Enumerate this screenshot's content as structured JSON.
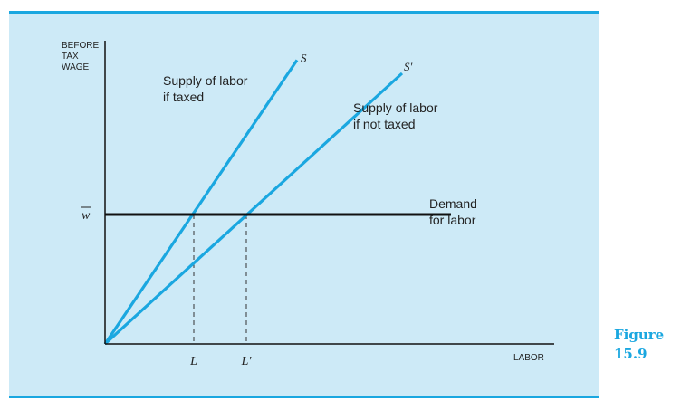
{
  "caption": {
    "word": "Figure",
    "number": "15.9"
  },
  "chart_data": {
    "type": "line",
    "title": "",
    "xlabel": "LABOR",
    "ylabel": [
      "BEFORE",
      "TAX",
      "WAGE"
    ],
    "xlim": [
      0,
      10
    ],
    "ylim": [
      0,
      10
    ],
    "grid": false,
    "series": [
      {
        "name": "S",
        "label_lines": [
          "Supply of labor",
          "if taxed"
        ],
        "color": "#1aa7e0",
        "x": [
          0,
          5.3
        ],
        "y": [
          0,
          9.65
        ]
      },
      {
        "name": "S'",
        "label_lines": [
          "Supply of labor",
          "if not taxed"
        ],
        "color": "#1aa7e0",
        "x": [
          0,
          8.2
        ],
        "y": [
          0,
          9.2
        ]
      },
      {
        "name": "",
        "label_lines": [
          "Demand",
          "for labor"
        ],
        "color": "#111111",
        "x": [
          0,
          9.55
        ],
        "y": [
          4.4,
          4.4
        ]
      }
    ],
    "y_ticks": [
      {
        "value": 4.4,
        "label": "w",
        "overline": true
      }
    ],
    "x_ticks": [
      {
        "value": 2.45,
        "label": "L"
      },
      {
        "value": 3.9,
        "label": "L'"
      }
    ],
    "guides": [
      {
        "x": 2.45,
        "y": 4.4
      },
      {
        "x": 3.9,
        "y": 4.4
      }
    ]
  }
}
